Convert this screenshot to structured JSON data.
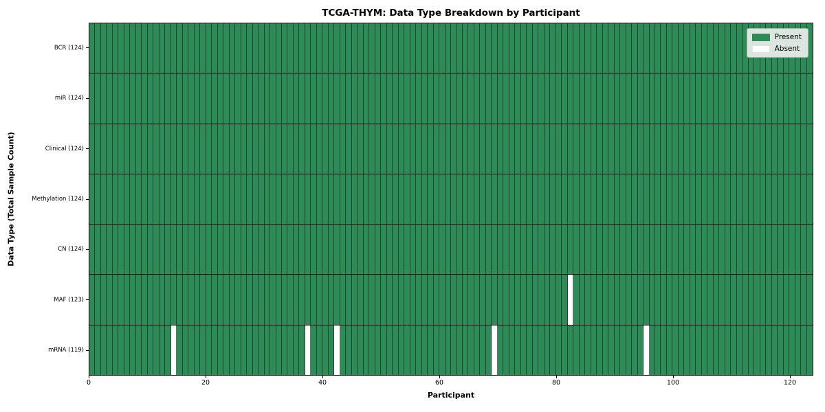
{
  "figure": {
    "title": "TCGA-THYM: Data Type Breakdown by Participant",
    "xlabel": "Participant",
    "ylabel": "Data Type (Total Sample Count)"
  },
  "chart_data": {
    "type": "heatmap",
    "title": "TCGA-THYM: Data Type Breakdown by Participant",
    "xlabel": "Participant",
    "ylabel": "Data Type (Total Sample Count)",
    "x_ticks": [
      0,
      20,
      40,
      60,
      80,
      100,
      120
    ],
    "xlim": [
      0,
      124
    ],
    "n_participants": 124,
    "grid": "cell-borders",
    "legend_position": "upper right",
    "legend": [
      {
        "label": "Present",
        "color": "#2e8b57"
      },
      {
        "label": "Absent",
        "color": "#ffffff"
      }
    ],
    "colors": {
      "present": "#2e8b57",
      "absent": "#ffffff",
      "cell_border": "#1e3b2a",
      "row_divider": "#0d120e",
      "legend_background": "#dbe7de"
    },
    "rows": [
      {
        "label": "BCR (124)",
        "data_type": "BCR",
        "present_count": 124,
        "absent_indices": []
      },
      {
        "label": "miR (124)",
        "data_type": "miR",
        "present_count": 124,
        "absent_indices": []
      },
      {
        "label": "Clinical (124)",
        "data_type": "Clinical",
        "present_count": 124,
        "absent_indices": []
      },
      {
        "label": "Methylation (124)",
        "data_type": "Methylation",
        "present_count": 124,
        "absent_indices": []
      },
      {
        "label": "CN (124)",
        "data_type": "CN",
        "present_count": 124,
        "absent_indices": []
      },
      {
        "label": "MAF (123)",
        "data_type": "MAF",
        "present_count": 123,
        "absent_indices": [
          82
        ]
      },
      {
        "label": "mRNA (119)",
        "data_type": "mRNA",
        "present_count": 119,
        "absent_indices": [
          14,
          37,
          42,
          69,
          95
        ]
      }
    ]
  }
}
